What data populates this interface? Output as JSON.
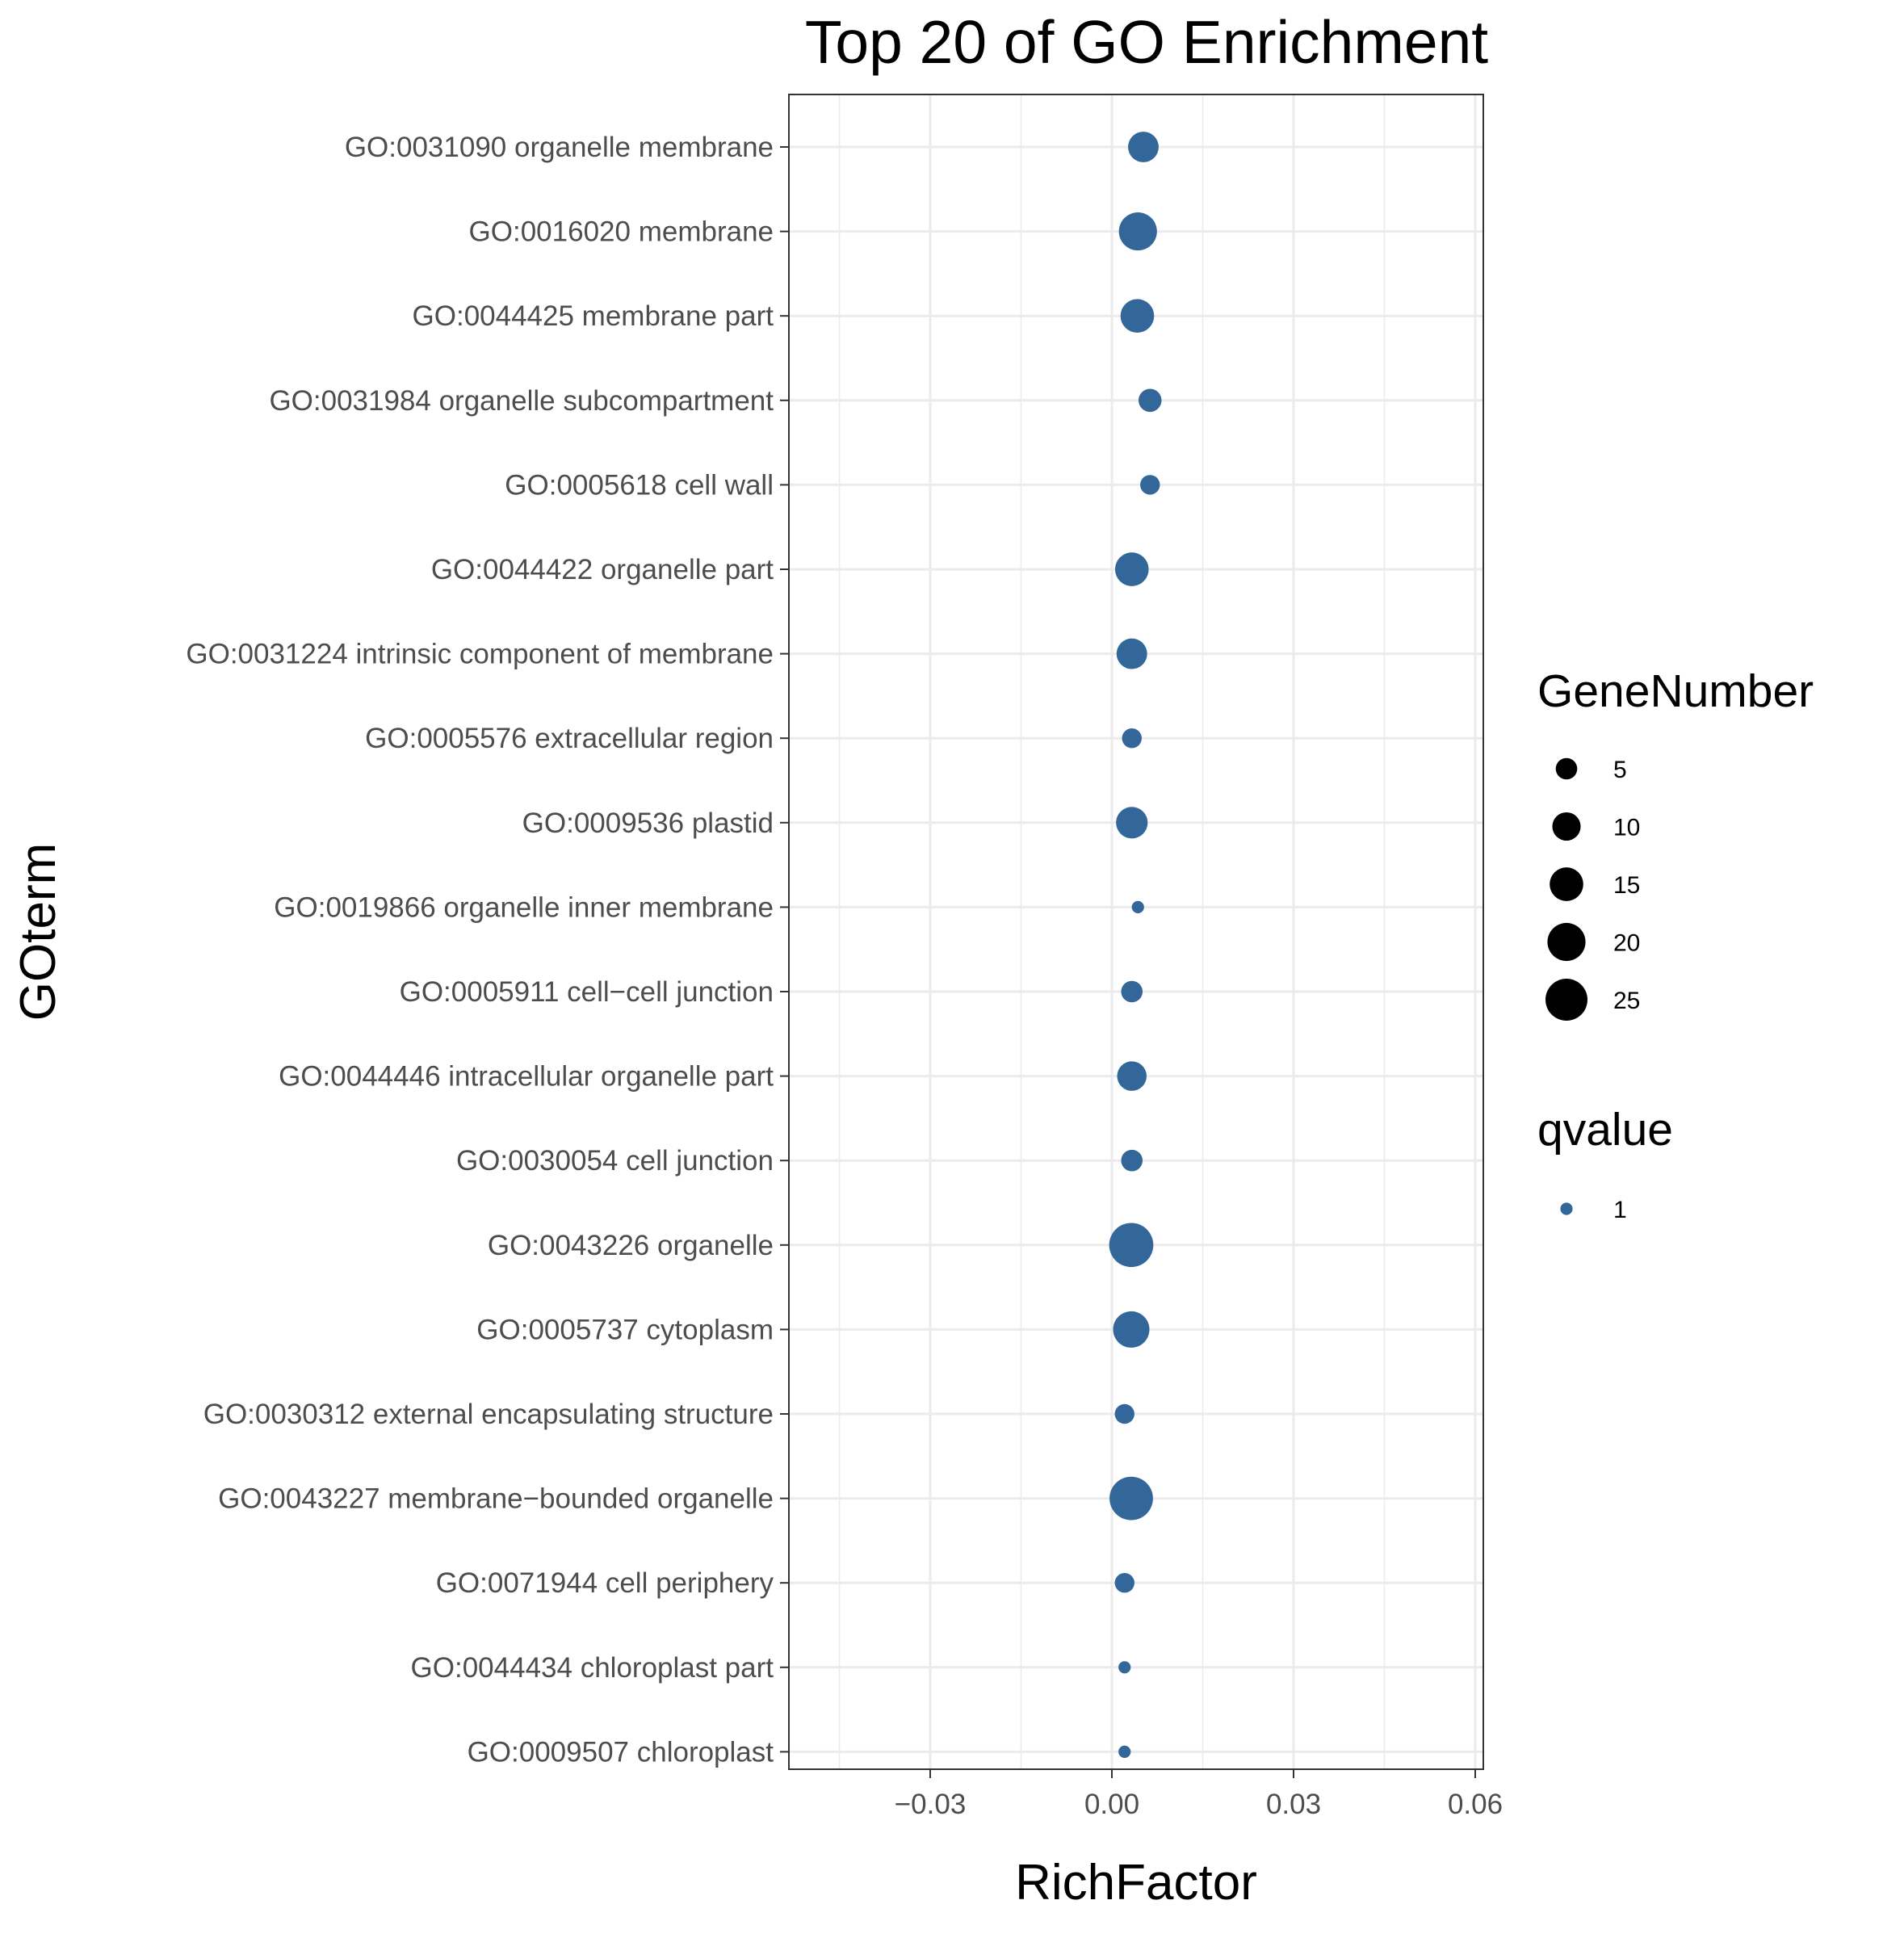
{
  "chart_data": {
    "type": "scatter",
    "title": "Top 20 of GO Enrichment",
    "xlabel": "RichFactor",
    "ylabel": "GOterm",
    "xlim": [
      -0.053,
      0.061
    ],
    "xticks": [
      -0.03,
      0.0,
      0.03,
      0.06
    ],
    "xtick_labels": [
      "−0.03",
      "0.00",
      "0.03",
      "0.06"
    ],
    "grid": true,
    "legend_position": "right",
    "point_color": "#336699",
    "categories": [
      "GO:0031090 organelle membrane",
      "GO:0016020 membrane",
      "GO:0044425 membrane part",
      "GO:0031984 organelle subcompartment",
      "GO:0005618 cell wall",
      "GO:0044422 organelle part",
      "GO:0031224 intrinsic component of membrane",
      "GO:0005576 extracellular region",
      "GO:0009536 plastid",
      "GO:0019866 organelle inner membrane",
      "GO:0005911 cell−cell junction",
      "GO:0044446 intracellular organelle part",
      "GO:0030054 cell junction",
      "GO:0043226 organelle",
      "GO:0005737 cytoplasm",
      "GO:0030312 external encapsulating structure",
      "GO:0043227 membrane−bounded organelle",
      "GO:0071944 cell periphery",
      "GO:0044434 chloroplast part",
      "GO:0009507 chloroplast"
    ],
    "points": [
      {
        "term": "GO:0031090 organelle membrane",
        "rich_factor": 0.0052,
        "gene_number": 12,
        "qvalue": 1
      },
      {
        "term": "GO:0016020 membrane",
        "rich_factor": 0.0043,
        "gene_number": 20,
        "qvalue": 1
      },
      {
        "term": "GO:0044425 membrane part",
        "rich_factor": 0.0042,
        "gene_number": 15,
        "qvalue": 1
      },
      {
        "term": "GO:0031984 organelle subcompartment",
        "rich_factor": 0.0063,
        "gene_number": 6,
        "qvalue": 1
      },
      {
        "term": "GO:0005618 cell wall",
        "rich_factor": 0.0063,
        "gene_number": 4,
        "qvalue": 1
      },
      {
        "term": "GO:0044422 organelle part",
        "rich_factor": 0.0033,
        "gene_number": 15,
        "qvalue": 1
      },
      {
        "term": "GO:0031224 intrinsic component of membrane",
        "rich_factor": 0.0033,
        "gene_number": 12,
        "qvalue": 1
      },
      {
        "term": "GO:0005576 extracellular region",
        "rich_factor": 0.0033,
        "gene_number": 4,
        "qvalue": 1
      },
      {
        "term": "GO:0009536 plastid",
        "rich_factor": 0.0033,
        "gene_number": 13,
        "qvalue": 1
      },
      {
        "term": "GO:0019866 organelle inner membrane",
        "rich_factor": 0.0043,
        "gene_number": 1,
        "qvalue": 1
      },
      {
        "term": "GO:0005911 cell−cell junction",
        "rich_factor": 0.0033,
        "gene_number": 5,
        "qvalue": 1
      },
      {
        "term": "GO:0044446 intracellular organelle part",
        "rich_factor": 0.0033,
        "gene_number": 11,
        "qvalue": 1
      },
      {
        "term": "GO:0030054 cell junction",
        "rich_factor": 0.0033,
        "gene_number": 5,
        "qvalue": 1
      },
      {
        "term": "GO:0043226 organelle",
        "rich_factor": 0.0032,
        "gene_number": 28,
        "qvalue": 1
      },
      {
        "term": "GO:0005737 cytoplasm",
        "rich_factor": 0.0032,
        "gene_number": 18,
        "qvalue": 1
      },
      {
        "term": "GO:0030312 external encapsulating structure",
        "rich_factor": 0.0021,
        "gene_number": 4,
        "qvalue": 1
      },
      {
        "term": "GO:0043227 membrane−bounded organelle",
        "rich_factor": 0.0032,
        "gene_number": 27,
        "qvalue": 1
      },
      {
        "term": "GO:0071944 cell periphery",
        "rich_factor": 0.0021,
        "gene_number": 4,
        "qvalue": 1
      },
      {
        "term": "GO:0044434 chloroplast part",
        "rich_factor": 0.0021,
        "gene_number": 1,
        "qvalue": 1
      },
      {
        "term": "GO:0009507 chloroplast",
        "rich_factor": 0.0021,
        "gene_number": 1,
        "qvalue": 1
      }
    ],
    "legend": {
      "size_title": "GeneNumber",
      "size_entries": [
        {
          "label": "5",
          "value": 5
        },
        {
          "label": "10",
          "value": 10
        },
        {
          "label": "15",
          "value": 15
        },
        {
          "label": "20",
          "value": 20
        },
        {
          "label": "25",
          "value": 25
        }
      ],
      "color_title": "qvalue",
      "color_entries": [
        {
          "label": "1",
          "color": "#336699"
        }
      ]
    }
  }
}
